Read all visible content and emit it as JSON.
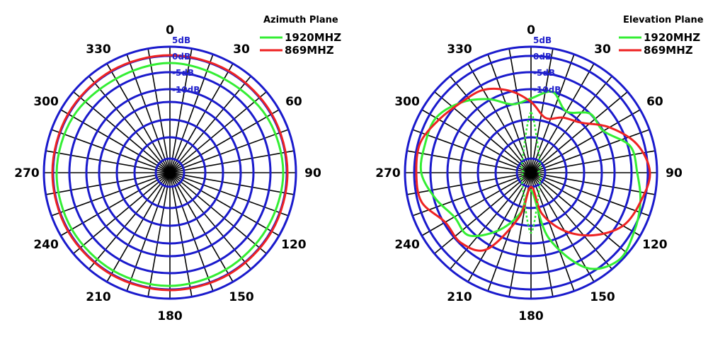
{
  "chart_data": [
    {
      "type": "polar-line",
      "title": "Azimuth Plane",
      "angle_labels": [
        "0",
        "30",
        "60",
        "90",
        "120",
        "150",
        "180",
        "210",
        "240",
        "270",
        "300",
        "330"
      ],
      "radial_labels": [
        "5dB",
        "0dB",
        "-5dB",
        "-10dB"
      ],
      "series": [
        {
          "name": "1920MHZ",
          "color": "#33ee33",
          "style": "solid",
          "angles": [
            0,
            30,
            60,
            90,
            120,
            150,
            180,
            210,
            240,
            270,
            300,
            330
          ],
          "values": [
            155,
            153,
            158,
            160,
            158,
            158,
            160,
            160,
            160,
            160,
            158,
            153
          ]
        },
        {
          "name": "869MHZ",
          "color": "#ee2222",
          "style": "solid",
          "angles": [
            0,
            30,
            60,
            90,
            120,
            150,
            180,
            210,
            240,
            270,
            300,
            330
          ],
          "values": [
            166,
            166,
            166,
            166,
            166,
            166,
            166,
            166,
            166,
            166,
            166,
            166
          ]
        }
      ]
    },
    {
      "type": "polar-line",
      "title": "Elevation Plane",
      "angle_labels": [
        "0",
        "30",
        "60",
        "90",
        "120",
        "150",
        "180",
        "210",
        "240",
        "270",
        "300",
        "330"
      ],
      "radial_labels": [
        "5dB",
        "0dB",
        "-5dB",
        "-10dB"
      ],
      "series": [
        {
          "name": "1920MHZ",
          "color": "#33ee33",
          "style": "solid",
          "angles": [
            0,
            15,
            30,
            45,
            60,
            75,
            90,
            105,
            120,
            135,
            150,
            165,
            180,
            195,
            210,
            225,
            240,
            255,
            270,
            285,
            300,
            315,
            330,
            345
          ],
          "values": [
            105,
            118,
            100,
            118,
            118,
            145,
            150,
            160,
            168,
            175,
            155,
            95,
            25,
            60,
            95,
            125,
            125,
            140,
            155,
            155,
            155,
            140,
            120,
            100
          ]
        },
        {
          "name": "869MHZ",
          "color": "#ee2222",
          "style": "solid",
          "angles": [
            0,
            15,
            30,
            45,
            60,
            75,
            90,
            105,
            120,
            135,
            150,
            165,
            180,
            195,
            210,
            225,
            240,
            255,
            270,
            285,
            300,
            315,
            330,
            345
          ],
          "values": [
            100,
            80,
            90,
            100,
            128,
            155,
            168,
            160,
            150,
            125,
            95,
            60,
            20,
            65,
            125,
            140,
            140,
            160,
            162,
            162,
            150,
            140,
            135,
            120
          ]
        },
        {
          "name": "",
          "color": "#33ee33",
          "style": "dotted",
          "angles": [
            0,
            45,
            90,
            135,
            180,
            225,
            270,
            315
          ],
          "values": [
            85,
            18,
            10,
            18,
            85,
            18,
            10,
            18
          ]
        }
      ]
    }
  ]
}
